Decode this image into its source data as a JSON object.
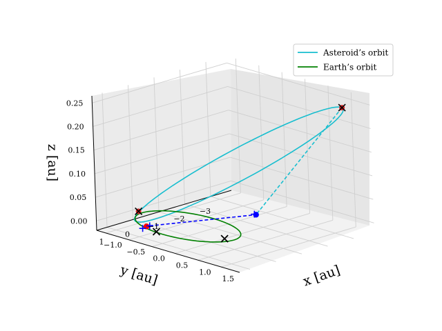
{
  "chart_data": {
    "type": "line3d",
    "title": "",
    "legend": {
      "placement": "top-right",
      "entries": [
        {
          "label": "Asteroid’s orbit",
          "color": "#17becf"
        },
        {
          "label": "Earth’s orbit",
          "color": "#008000"
        }
      ]
    },
    "axes": {
      "x": {
        "label": "x [au]",
        "range": [
          -1.2,
          1.9
        ],
        "ticks": [
          -1.0,
          -0.5,
          0.0,
          0.5,
          1.0,
          1.5
        ],
        "tick_labels": [
          "−1.0",
          "−0.5",
          "0.0",
          "0.5",
          "1.0",
          "1.5"
        ]
      },
      "y": {
        "label": "y [au]",
        "range": [
          -3.8,
          1.4
        ],
        "ticks": [
          1,
          0,
          -1,
          -2,
          -3
        ],
        "tick_labels": [
          "1",
          "0",
          "−1",
          "−2",
          "−3"
        ]
      },
      "z": {
        "label": "z [au]",
        "range": [
          -0.02,
          0.265
        ],
        "ticks": [
          0.0,
          0.05,
          0.1,
          0.15,
          0.2,
          0.25
        ],
        "tick_labels": [
          "0.00",
          "0.05",
          "0.10",
          "0.15",
          "0.20",
          "0.25"
        ]
      }
    },
    "series": [
      {
        "name": "Asteroid’s orbit",
        "kind": "ellipse",
        "color": "#17becf",
        "style": "solid",
        "center": [
          0.35,
          -1.42,
          0.118
        ],
        "u": [
          1.1,
          -2.1,
          0.118
        ],
        "v": [
          0.5,
          0.25,
          0.0
        ]
      },
      {
        "name": "Earth’s orbit",
        "kind": "ellipse",
        "color": "#008000",
        "style": "solid",
        "center": [
          0.0,
          0.0,
          0.0
        ],
        "u": [
          1.0,
          0.0,
          0.0
        ],
        "v": [
          0.0,
          1.0,
          0.0
        ]
      },
      {
        "name": "transfer-dashed-cyan",
        "kind": "segment",
        "color": "#17becf",
        "style": "dashed",
        "points": [
          [
            1.45,
            -3.52,
            0.236
          ],
          [
            1.1,
            -0.7,
            0.045
          ]
        ]
      },
      {
        "name": "transfer-dashed-blue",
        "kind": "segment",
        "color": "#0000ff",
        "style": "dashed",
        "points": [
          [
            -0.35,
            0.85,
            0.005
          ],
          [
            1.1,
            -0.7,
            0.045
          ]
        ]
      }
    ],
    "markers": [
      {
        "name": "asteroid-start",
        "symbol": "dot",
        "color": "#ff0000",
        "point": [
          -0.45,
          0.8,
          0.0
        ]
      },
      {
        "name": "asteroid-end",
        "symbol": "dot",
        "color": "#0000ff",
        "point": [
          1.1,
          -0.7,
          0.045
        ]
      },
      {
        "name": "plus-start",
        "symbol": "plus",
        "color": "#0000ff",
        "point": [
          -0.35,
          0.85,
          0.005
        ]
      },
      {
        "name": "plus-start-2",
        "symbol": "plus",
        "color": "#0000ff",
        "point": [
          -0.42,
          1.0,
          0.0
        ]
      },
      {
        "name": "plus-end",
        "symbol": "plus",
        "color": "#0000ff",
        "point": [
          1.15,
          -0.55,
          0.05
        ]
      },
      {
        "name": "cross-red-1",
        "symbol": "x-red",
        "color": "#8b0000",
        "point": [
          1.45,
          -3.52,
          0.236
        ]
      },
      {
        "name": "cross-red-2",
        "symbol": "x-red",
        "color": "#8b0000",
        "point": [
          -0.6,
          0.82,
          0.028
        ]
      },
      {
        "name": "cross-black-1",
        "symbol": "x",
        "color": "#000000",
        "point": [
          -0.15,
          0.95,
          0.0
        ]
      },
      {
        "name": "cross-black-2",
        "symbol": "x",
        "color": "#000000",
        "point": [
          0.85,
          0.1,
          0.0
        ]
      }
    ]
  }
}
